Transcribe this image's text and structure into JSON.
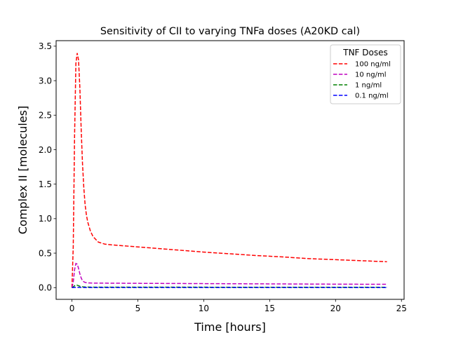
{
  "chart_data": {
    "type": "line",
    "title": "Sensitivity of CII to varying TNFa doses (A20KD cal)",
    "xlabel": "Time [hours]",
    "ylabel": "Complex II [molecules]",
    "xlim": [
      -1.2,
      25.2
    ],
    "ylim": [
      -0.17,
      3.58
    ],
    "xticks": [
      0,
      5,
      10,
      15,
      20,
      25
    ],
    "xtick_labels": [
      "0",
      "5",
      "10",
      "15",
      "20",
      "25"
    ],
    "yticks": [
      0,
      0.5,
      1,
      1.5,
      2,
      2.5,
      3,
      3.5
    ],
    "ytick_labels": [
      "0.0",
      "0.5",
      "1.0",
      "1.5",
      "2.0",
      "2.5",
      "3.0",
      "3.5"
    ],
    "grid": false,
    "legend": {
      "title": "TNF Doses",
      "placement": "top-right"
    },
    "line_style": "dashed",
    "series": [
      {
        "name": "100 ng/ml",
        "color": "#ff0000",
        "x": [
          0,
          0.1,
          0.2,
          0.3,
          0.4,
          0.5,
          0.6,
          0.7,
          0.8,
          0.9,
          1.0,
          1.1,
          1.2,
          1.4,
          1.6,
          1.8,
          2.0,
          2.5,
          3,
          4,
          5,
          6,
          8,
          10,
          12,
          14,
          16,
          18,
          20,
          22,
          23.9
        ],
        "y": [
          0.0,
          0.6,
          2.2,
          3.25,
          3.4,
          3.3,
          2.9,
          2.3,
          1.8,
          1.45,
          1.2,
          1.05,
          0.95,
          0.82,
          0.74,
          0.7,
          0.66,
          0.63,
          0.62,
          0.605,
          0.59,
          0.575,
          0.545,
          0.515,
          0.49,
          0.465,
          0.445,
          0.42,
          0.405,
          0.39,
          0.375
        ]
      },
      {
        "name": "10 ng/ml",
        "color": "#bf00bf",
        "x": [
          0,
          0.1,
          0.2,
          0.3,
          0.4,
          0.5,
          0.6,
          0.7,
          0.8,
          0.9,
          1.0,
          1.2,
          1.5,
          2,
          3,
          5,
          10,
          15,
          20,
          23.9
        ],
        "y": [
          0.0,
          0.08,
          0.26,
          0.35,
          0.34,
          0.28,
          0.2,
          0.14,
          0.1,
          0.085,
          0.075,
          0.068,
          0.066,
          0.065,
          0.064,
          0.062,
          0.058,
          0.054,
          0.05,
          0.048
        ]
      },
      {
        "name": "1 ng/ml",
        "color": "#008000",
        "x": [
          0,
          0.1,
          0.2,
          0.3,
          0.4,
          0.5,
          0.6,
          0.8,
          1.0,
          1.5,
          2,
          5,
          10,
          15,
          20,
          23.9
        ],
        "y": [
          0.0,
          0.01,
          0.028,
          0.036,
          0.035,
          0.028,
          0.02,
          0.012,
          0.009,
          0.007,
          0.007,
          0.006,
          0.006,
          0.005,
          0.005,
          0.005
        ]
      },
      {
        "name": "0.1 ng/ml",
        "color": "#0000ff",
        "x": [
          0,
          0.2,
          0.4,
          0.6,
          1.0,
          2,
          5,
          10,
          15,
          20,
          23.9
        ],
        "y": [
          0.0,
          0.003,
          0.004,
          0.003,
          0.002,
          0.001,
          0.001,
          0.001,
          0.001,
          0.001,
          0.001
        ]
      }
    ]
  }
}
